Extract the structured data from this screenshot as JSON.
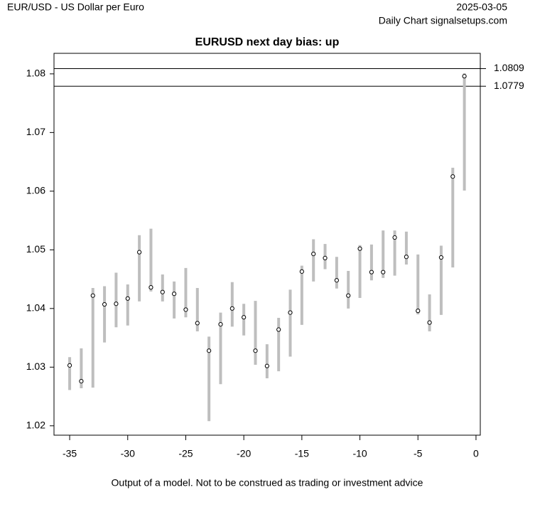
{
  "chart_data": {
    "type": "range",
    "source": "EUR/USD - US Dollar per Euro",
    "date": "2025-03-05",
    "subtitle": "Daily Chart signalsetups.com",
    "title": "EURUSD next day bias: up",
    "footer": "Output of a model. Not to be construed as trading or investment advice",
    "x": [
      -35,
      -34,
      -33,
      -32,
      -31,
      -30,
      -29,
      -28,
      -27,
      -26,
      -25,
      -24,
      -23,
      -22,
      -21,
      -20,
      -19,
      -18,
      -17,
      -16,
      -15,
      -14,
      -13,
      -12,
      -11,
      -10,
      -9,
      -8,
      -7,
      -6,
      -5,
      -4,
      -3,
      -2,
      -1
    ],
    "high": [
      1.0317,
      1.0332,
      1.0435,
      1.0438,
      1.0461,
      1.0441,
      1.0525,
      1.0536,
      1.0458,
      1.0446,
      1.0469,
      1.0435,
      1.0352,
      1.0393,
      1.0445,
      1.0408,
      1.0413,
      1.0339,
      1.0384,
      1.0432,
      1.0473,
      1.0518,
      1.051,
      1.0488,
      1.0464,
      1.0508,
      1.0509,
      1.0533,
      1.0533,
      1.0531,
      1.0492,
      1.0424,
      1.0507,
      1.064,
      1.0801
    ],
    "low": [
      1.0261,
      1.0264,
      1.0265,
      1.0342,
      1.0368,
      1.0371,
      1.0412,
      1.0429,
      1.0412,
      1.0383,
      1.0385,
      1.0361,
      1.0208,
      1.0271,
      1.0369,
      1.0354,
      1.0304,
      1.0281,
      1.0293,
      1.0318,
      1.0372,
      1.0446,
      1.0467,
      1.0434,
      1.04,
      1.0418,
      1.0448,
      1.0452,
      1.0456,
      1.0475,
      1.039,
      1.0361,
      1.0389,
      1.047,
      1.0601
    ],
    "values": [
      1.0303,
      1.0276,
      1.0422,
      1.0407,
      1.0408,
      1.0417,
      1.0496,
      1.0436,
      1.0428,
      1.0425,
      1.0398,
      1.0375,
      1.0328,
      1.0373,
      1.04,
      1.0385,
      1.0328,
      1.0302,
      1.0364,
      1.0393,
      1.0463,
      1.0493,
      1.0486,
      1.0448,
      1.0422,
      1.0502,
      1.0462,
      1.0462,
      1.0521,
      1.0488,
      1.0396,
      1.0376,
      1.0487,
      1.0625,
      1.0796
    ],
    "range_color": "#bebebe",
    "hlines": [
      1.0809,
      1.0779
    ],
    "xlim": [
      -36.35,
      0.37
    ],
    "xticks": [
      -35,
      -30,
      -25,
      -20,
      -15,
      -10,
      -5,
      0
    ],
    "ylim": [
      1.0184,
      1.0835
    ],
    "yticks": [
      1.02,
      1.03,
      1.04,
      1.05,
      1.06,
      1.07,
      1.08
    ]
  }
}
